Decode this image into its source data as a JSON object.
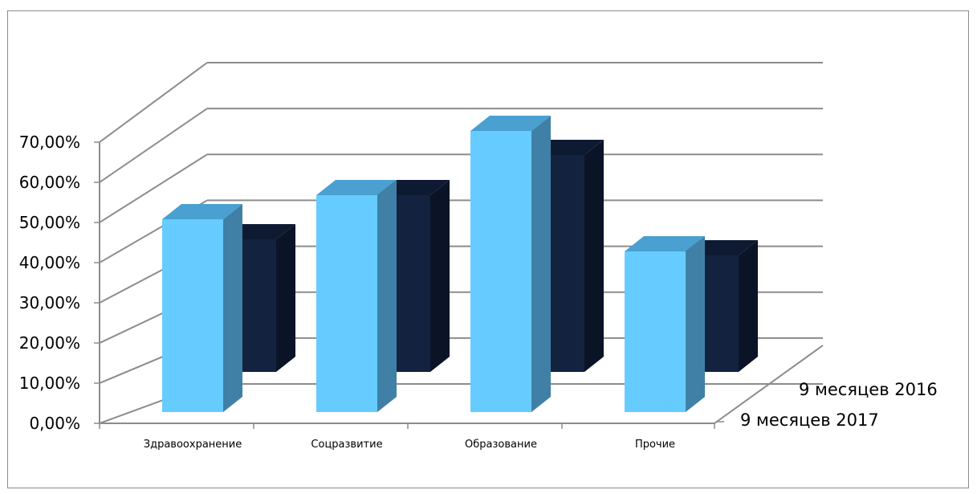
{
  "chart_data": {
    "type": "bar",
    "variant": "3d-column",
    "title": "",
    "xlabel": "",
    "ylabel": "",
    "categories": [
      "Здравоохранение",
      "Соцразвитие",
      "Образование",
      "Прочие"
    ],
    "series": [
      {
        "name": "9 месяцев 2017",
        "values": [
          0.48,
          0.54,
          0.7,
          0.4
        ],
        "color": "#66ccff",
        "side_color": "#4080a6",
        "top_color": "#4aa0d0"
      },
      {
        "name": "9 месяцев 2016",
        "values": [
          0.33,
          0.44,
          0.54,
          0.29
        ],
        "color": "#13223f",
        "side_color": "#0b1427",
        "top_color": "#0e1a32"
      }
    ],
    "ylim": [
      0,
      0.7
    ],
    "ytick_values": [
      0,
      0.1,
      0.2,
      0.3,
      0.4,
      0.5,
      0.6,
      0.7
    ],
    "ytick_labels": [
      "0,00%",
      "10,00%",
      "20,00%",
      "30,00%",
      "40,00%",
      "50,00%",
      "60,00%",
      "70,00%"
    ],
    "grid": true,
    "grid_color": "#8c8c8c",
    "legend": "none"
  }
}
